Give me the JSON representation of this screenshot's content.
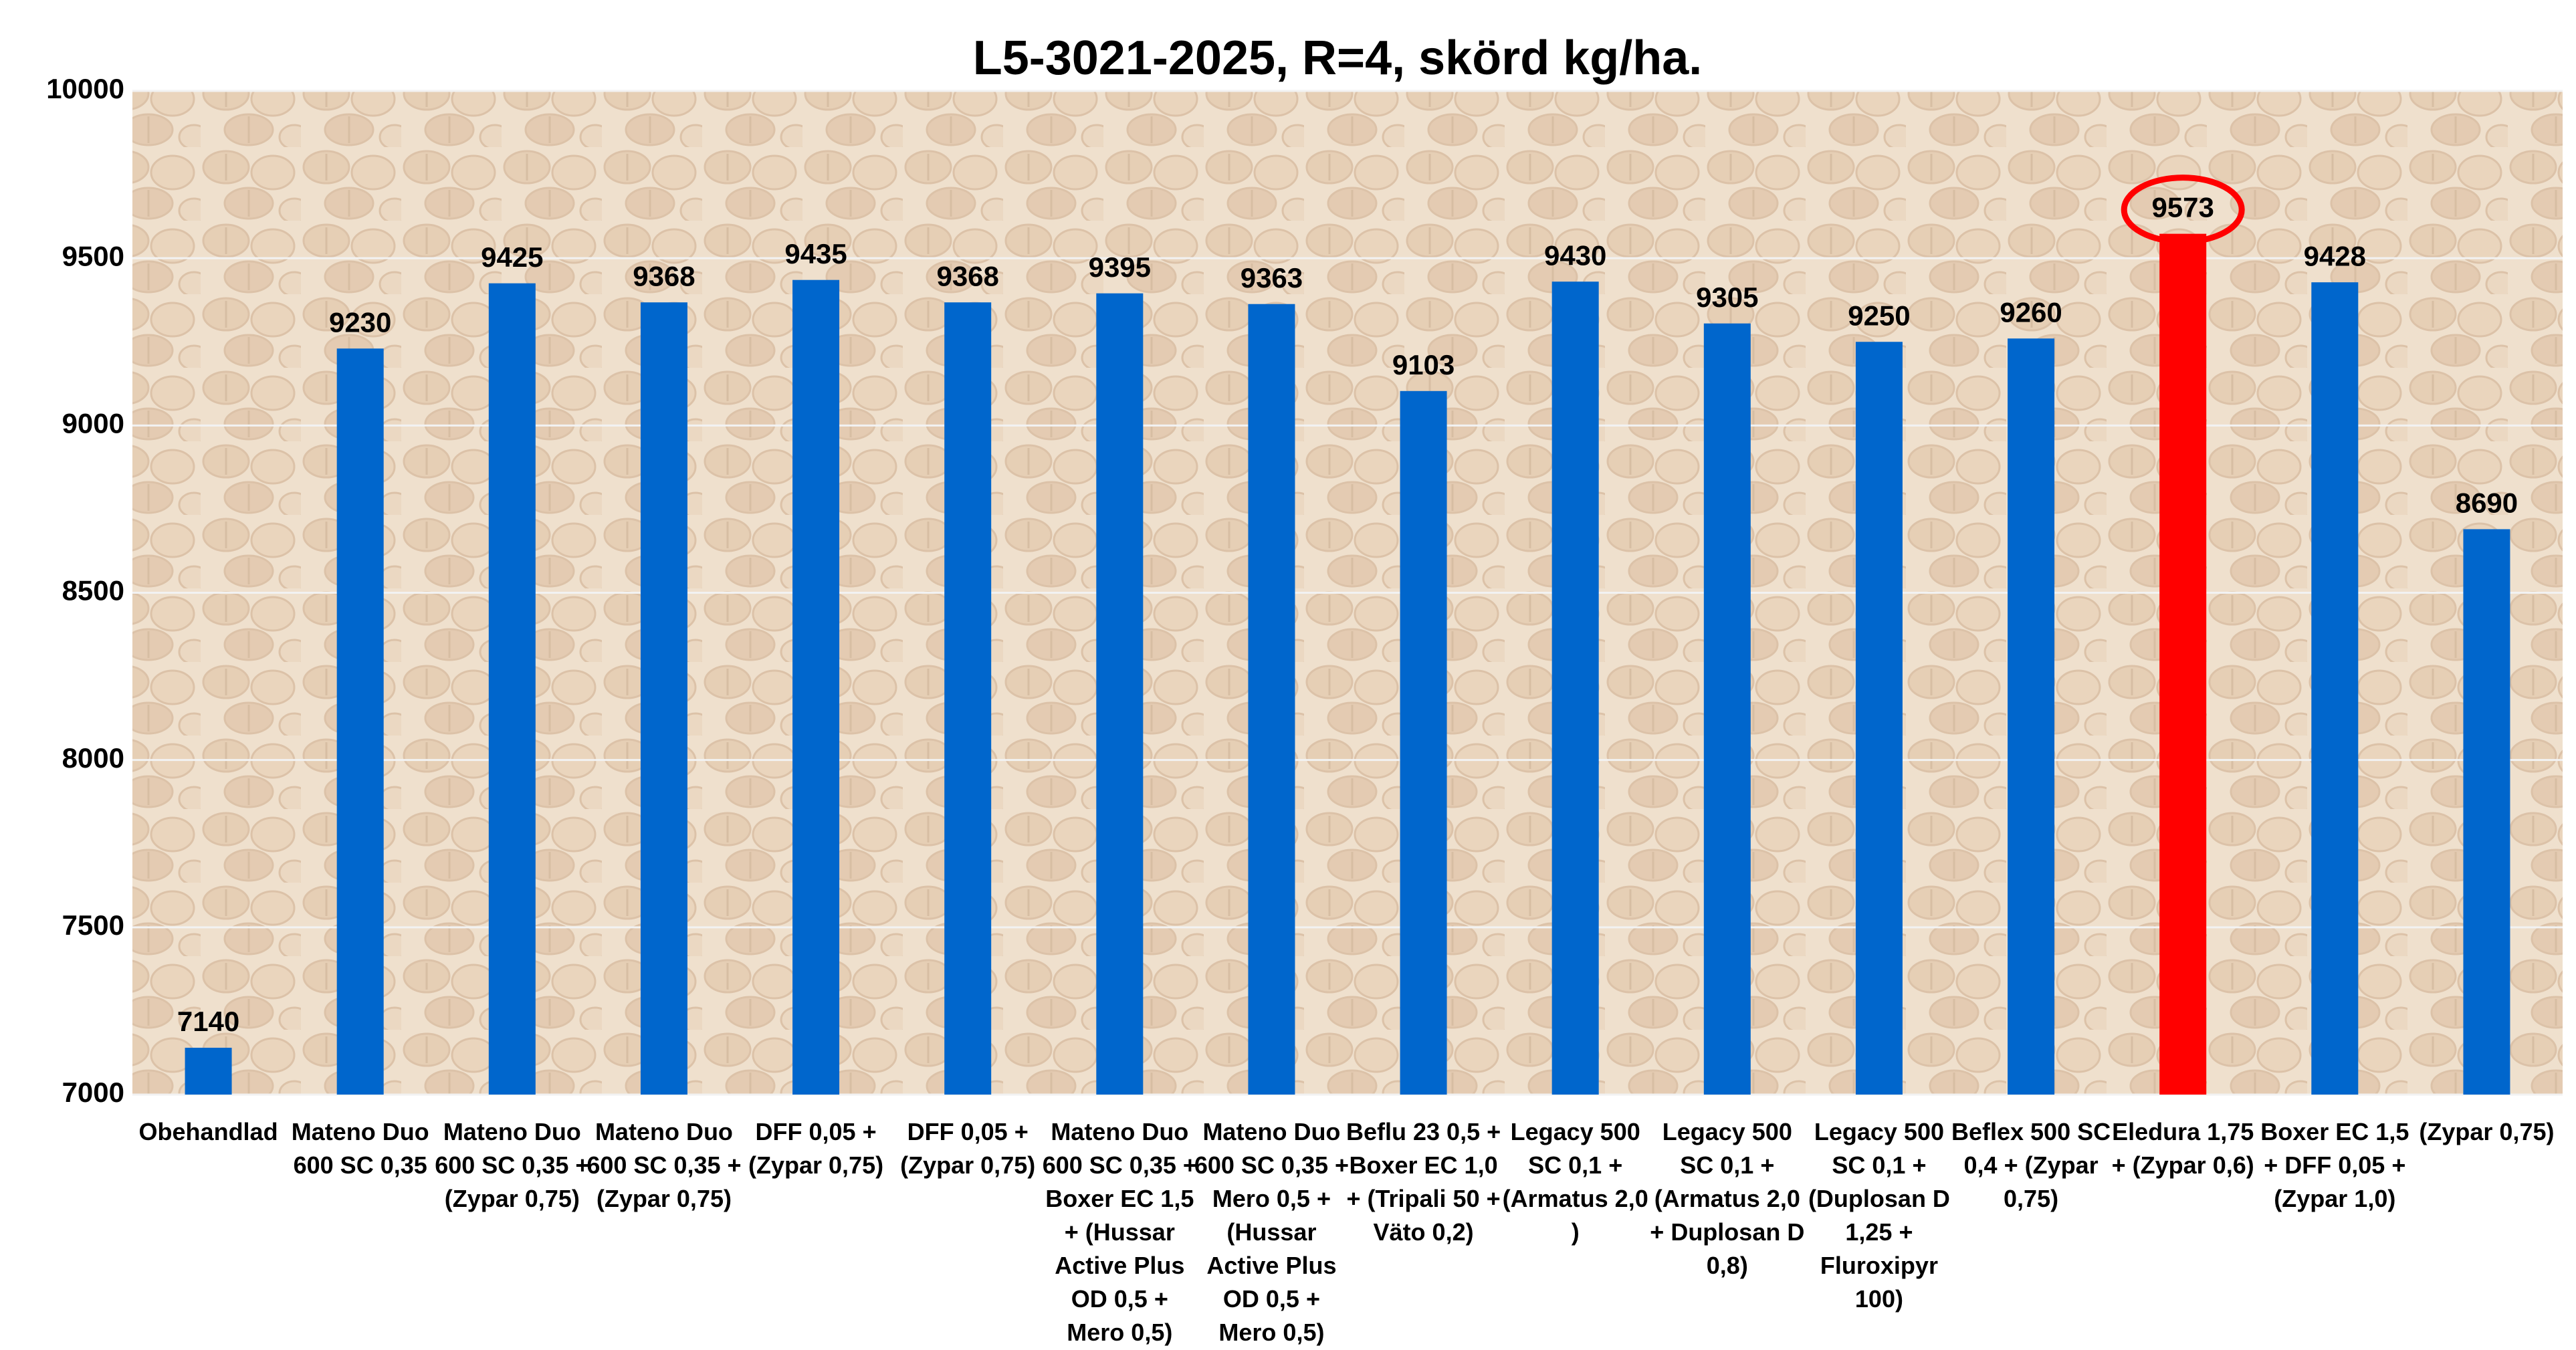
{
  "chart_data": {
    "type": "bar",
    "title": "L5-3021-2025, R=4, skörd kg/ha.",
    "categories": [
      "Obehandlad",
      "Mateno Duo 600 SC 0,35",
      "Mateno Duo 600 SC 0,35 + (Zypar 0,75)",
      "Mateno Duo 600 SC 0,35 + (Zypar 0,75)",
      "DFF 0,05 + (Zypar 0,75)",
      "DFF 0,05 + (Zypar 0,75)",
      "Mateno Duo 600 SC 0,35 + Boxer EC 1,5 + (Hussar Active Plus OD 0,5 + Mero 0,5)",
      "Mateno Duo 600 SC 0,35 + Mero 0,5 + (Hussar Active Plus OD 0,5 + Mero 0,5)",
      "Beflu 23 0,5 + Boxer EC 1,0 + (Tripali 50 + Väto 0,2)",
      "Legacy 500 SC 0,1 + (Armatus 2,0 )",
      "Legacy 500 SC 0,1 + (Armatus 2,0 + Duplosan D 0,8)",
      "Legacy 500 SC 0,1 + (Duplosan D 1,25 + Fluroxipyr 100)",
      "Beflex 500 SC 0,4 + (Zypar 0,75)",
      "Eledura 1,75 + (Zypar 0,6)",
      "Boxer EC 1,5 + DFF 0,05 + (Zypar 1,0)",
      "(Zypar 0,75)"
    ],
    "values": [
      7140,
      9230,
      9425,
      9368,
      9435,
      9368,
      9395,
      9363,
      9103,
      9430,
      9305,
      9250,
      9260,
      9573,
      9428,
      8690
    ],
    "colors": [
      "#0066cc",
      "#0066cc",
      "#0066cc",
      "#0066cc",
      "#0066cc",
      "#0066cc",
      "#0066cc",
      "#0066cc",
      "#0066cc",
      "#0066cc",
      "#0066cc",
      "#0066cc",
      "#0066cc",
      "#ff0000",
      "#0066cc",
      "#0066cc"
    ],
    "ylim": [
      7000,
      10000
    ],
    "yticks": [
      7000,
      7500,
      8000,
      8500,
      9000,
      9500,
      10000
    ],
    "grid": true
  }
}
